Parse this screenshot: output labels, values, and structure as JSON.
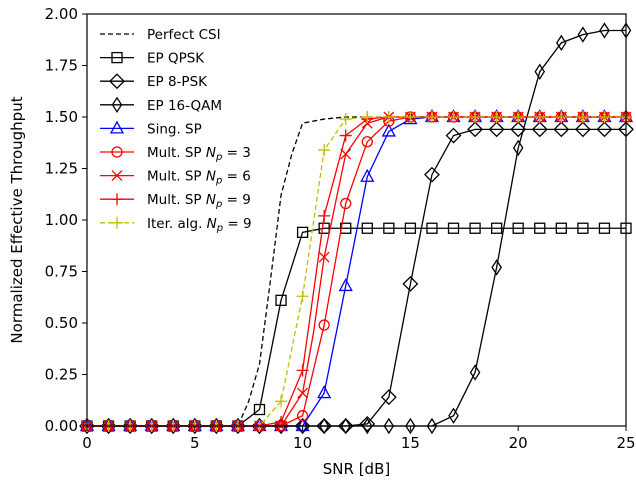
{
  "chart_data": {
    "type": "line",
    "title": "",
    "xlabel": "SNR [dB]",
    "ylabel": "Normalized Effective Throughput",
    "xlim": [
      0,
      25
    ],
    "ylim": [
      0,
      2
    ],
    "xticks": [
      0,
      5,
      10,
      15,
      20,
      25
    ],
    "yticks": [
      0,
      0.25,
      0.5,
      0.75,
      1.0,
      1.25,
      1.5,
      1.75,
      2.0
    ],
    "xtick_labels": [
      "0",
      "5",
      "10",
      "15",
      "20",
      "25"
    ],
    "ytick_labels": [
      "0.00",
      "0.25",
      "0.50",
      "0.75",
      "1.00",
      "1.25",
      "1.50",
      "1.75",
      "2.00"
    ],
    "grid": false,
    "legend_position": "top-left",
    "series": [
      {
        "name": "Perfect CSI",
        "legend_parts": [
          "Perfect CSI"
        ],
        "color": "#000000",
        "dash": "dashed",
        "marker": "none",
        "x": [
          0,
          1,
          2,
          3,
          4,
          5,
          6,
          7,
          7.5,
          8,
          8.5,
          9,
          9.5,
          10,
          11,
          12,
          13,
          14,
          15,
          16,
          17,
          18,
          19,
          20,
          21,
          22,
          23,
          24,
          25
        ],
        "y": [
          0,
          0,
          0,
          0,
          0,
          0,
          0,
          0,
          0.12,
          0.3,
          0.7,
          1.12,
          1.32,
          1.47,
          1.49,
          1.5,
          1.5,
          1.5,
          1.5,
          1.5,
          1.5,
          1.5,
          1.5,
          1.5,
          1.5,
          1.5,
          1.5,
          1.5,
          1.5
        ]
      },
      {
        "name": "EP QPSK",
        "legend_parts": [
          "EP QPSK"
        ],
        "color": "#000000",
        "dash": "solid",
        "marker": "square",
        "x": [
          0,
          1,
          2,
          3,
          4,
          5,
          6,
          7,
          8,
          9,
          10,
          11,
          12,
          13,
          14,
          15,
          16,
          17,
          18,
          19,
          20,
          21,
          22,
          23,
          24,
          25
        ],
        "y": [
          0,
          0,
          0,
          0,
          0,
          0,
          0,
          0,
          0.08,
          0.61,
          0.94,
          0.96,
          0.96,
          0.96,
          0.96,
          0.96,
          0.96,
          0.96,
          0.96,
          0.96,
          0.96,
          0.96,
          0.96,
          0.96,
          0.96,
          0.96
        ]
      },
      {
        "name": "EP 8-PSK",
        "legend_parts": [
          "EP 8-PSK"
        ],
        "color": "#000000",
        "dash": "solid",
        "marker": "diamond",
        "x": [
          0,
          1,
          2,
          3,
          4,
          5,
          6,
          7,
          8,
          9,
          10,
          11,
          12,
          13,
          14,
          15,
          16,
          17,
          18,
          19,
          20,
          21,
          22,
          23,
          24,
          25
        ],
        "y": [
          0,
          0,
          0,
          0,
          0,
          0,
          0,
          0,
          0,
          0,
          0,
          0,
          0,
          0.01,
          0.14,
          0.69,
          1.22,
          1.41,
          1.44,
          1.44,
          1.44,
          1.44,
          1.44,
          1.44,
          1.44,
          1.44
        ]
      },
      {
        "name": "EP 16-QAM",
        "legend_parts": [
          "EP 16-QAM"
        ],
        "color": "#000000",
        "dash": "solid",
        "marker": "thin_diamond",
        "x": [
          0,
          1,
          2,
          3,
          4,
          5,
          6,
          7,
          8,
          9,
          10,
          11,
          12,
          13,
          14,
          15,
          16,
          17,
          18,
          19,
          20,
          21,
          22,
          23,
          24,
          25
        ],
        "y": [
          0,
          0,
          0,
          0,
          0,
          0,
          0,
          0,
          0,
          0,
          0,
          0,
          0,
          0,
          0,
          0,
          0,
          0.05,
          0.26,
          0.77,
          1.35,
          1.72,
          1.86,
          1.9,
          1.92,
          1.92
        ]
      },
      {
        "name": "Sing. SP",
        "legend_parts": [
          "Sing. SP"
        ],
        "color": "#0000ff",
        "dash": "solid",
        "marker": "triangle",
        "x": [
          0,
          1,
          2,
          3,
          4,
          5,
          6,
          7,
          8,
          9,
          10,
          11,
          12,
          13,
          14,
          15,
          16,
          17,
          18,
          19,
          20,
          21,
          22,
          23,
          24,
          25
        ],
        "y": [
          0,
          0,
          0,
          0,
          0,
          0,
          0,
          0,
          0,
          0,
          0,
          0.16,
          0.68,
          1.21,
          1.43,
          1.49,
          1.5,
          1.5,
          1.5,
          1.5,
          1.5,
          1.5,
          1.5,
          1.5,
          1.5,
          1.5
        ]
      },
      {
        "name": "Mult. SP Np = 3",
        "legend_parts": [
          "Mult. SP ",
          "N",
          "p",
          " = 3"
        ],
        "color": "#ff0000",
        "dash": "solid",
        "marker": "circle",
        "x": [
          0,
          1,
          2,
          3,
          4,
          5,
          6,
          7,
          8,
          9,
          10,
          11,
          12,
          13,
          14,
          15,
          16,
          17,
          18,
          19,
          20,
          21,
          22,
          23,
          24,
          25
        ],
        "y": [
          0,
          0,
          0,
          0,
          0,
          0,
          0,
          0,
          0,
          0,
          0.05,
          0.49,
          1.08,
          1.38,
          1.48,
          1.5,
          1.5,
          1.5,
          1.5,
          1.5,
          1.5,
          1.5,
          1.5,
          1.5,
          1.5,
          1.5
        ]
      },
      {
        "name": "Mult. SP Np = 6",
        "legend_parts": [
          "Mult. SP ",
          "N",
          "p",
          " = 6"
        ],
        "color": "#ff0000",
        "dash": "solid",
        "marker": "x",
        "x": [
          0,
          1,
          2,
          3,
          4,
          5,
          6,
          7,
          8,
          9,
          10,
          10.5,
          11,
          12,
          13,
          14,
          15,
          16,
          17,
          18,
          19,
          20,
          21,
          22,
          23,
          24,
          25
        ],
        "y": [
          0,
          0,
          0,
          0,
          0,
          0,
          0,
          0,
          0,
          0,
          0.16,
          0.45,
          0.82,
          1.32,
          1.47,
          1.5,
          1.5,
          1.5,
          1.5,
          1.5,
          1.5,
          1.5,
          1.5,
          1.5,
          1.5,
          1.5,
          1.5
        ]
      },
      {
        "name": "Mult. SP Np = 9",
        "legend_parts": [
          "Mult. SP ",
          "N",
          "p",
          " = 9"
        ],
        "color": "#ff0000",
        "dash": "solid",
        "marker": "plus",
        "x": [
          0,
          1,
          2,
          3,
          4,
          5,
          6,
          7,
          8,
          9,
          10,
          11,
          12,
          13,
          14,
          15,
          16,
          17,
          18,
          19,
          20,
          21,
          22,
          23,
          24,
          25
        ],
        "y": [
          0,
          0,
          0,
          0,
          0,
          0,
          0,
          0,
          0,
          0.02,
          0.27,
          1.02,
          1.41,
          1.49,
          1.5,
          1.5,
          1.5,
          1.5,
          1.5,
          1.5,
          1.5,
          1.5,
          1.5,
          1.5,
          1.5,
          1.5
        ]
      },
      {
        "name": "Iter. alg. Np = 9",
        "legend_parts": [
          "Iter. alg. ",
          "N",
          "p",
          " = 9"
        ],
        "color": "#bfbf00",
        "dash": "dashed",
        "marker": "plus",
        "x": [
          0,
          1,
          2,
          3,
          4,
          5,
          6,
          7,
          8,
          9,
          10,
          11,
          12,
          13,
          14,
          15,
          16,
          17,
          18,
          19,
          20,
          21,
          22,
          23,
          24,
          25
        ],
        "y": [
          0,
          0,
          0,
          0,
          0,
          0,
          0,
          0,
          0,
          0.12,
          0.63,
          1.34,
          1.49,
          1.5,
          1.5,
          1.5,
          1.5,
          1.5,
          1.5,
          1.5,
          1.5,
          1.5,
          1.5,
          1.5,
          1.5,
          1.5
        ]
      }
    ]
  }
}
